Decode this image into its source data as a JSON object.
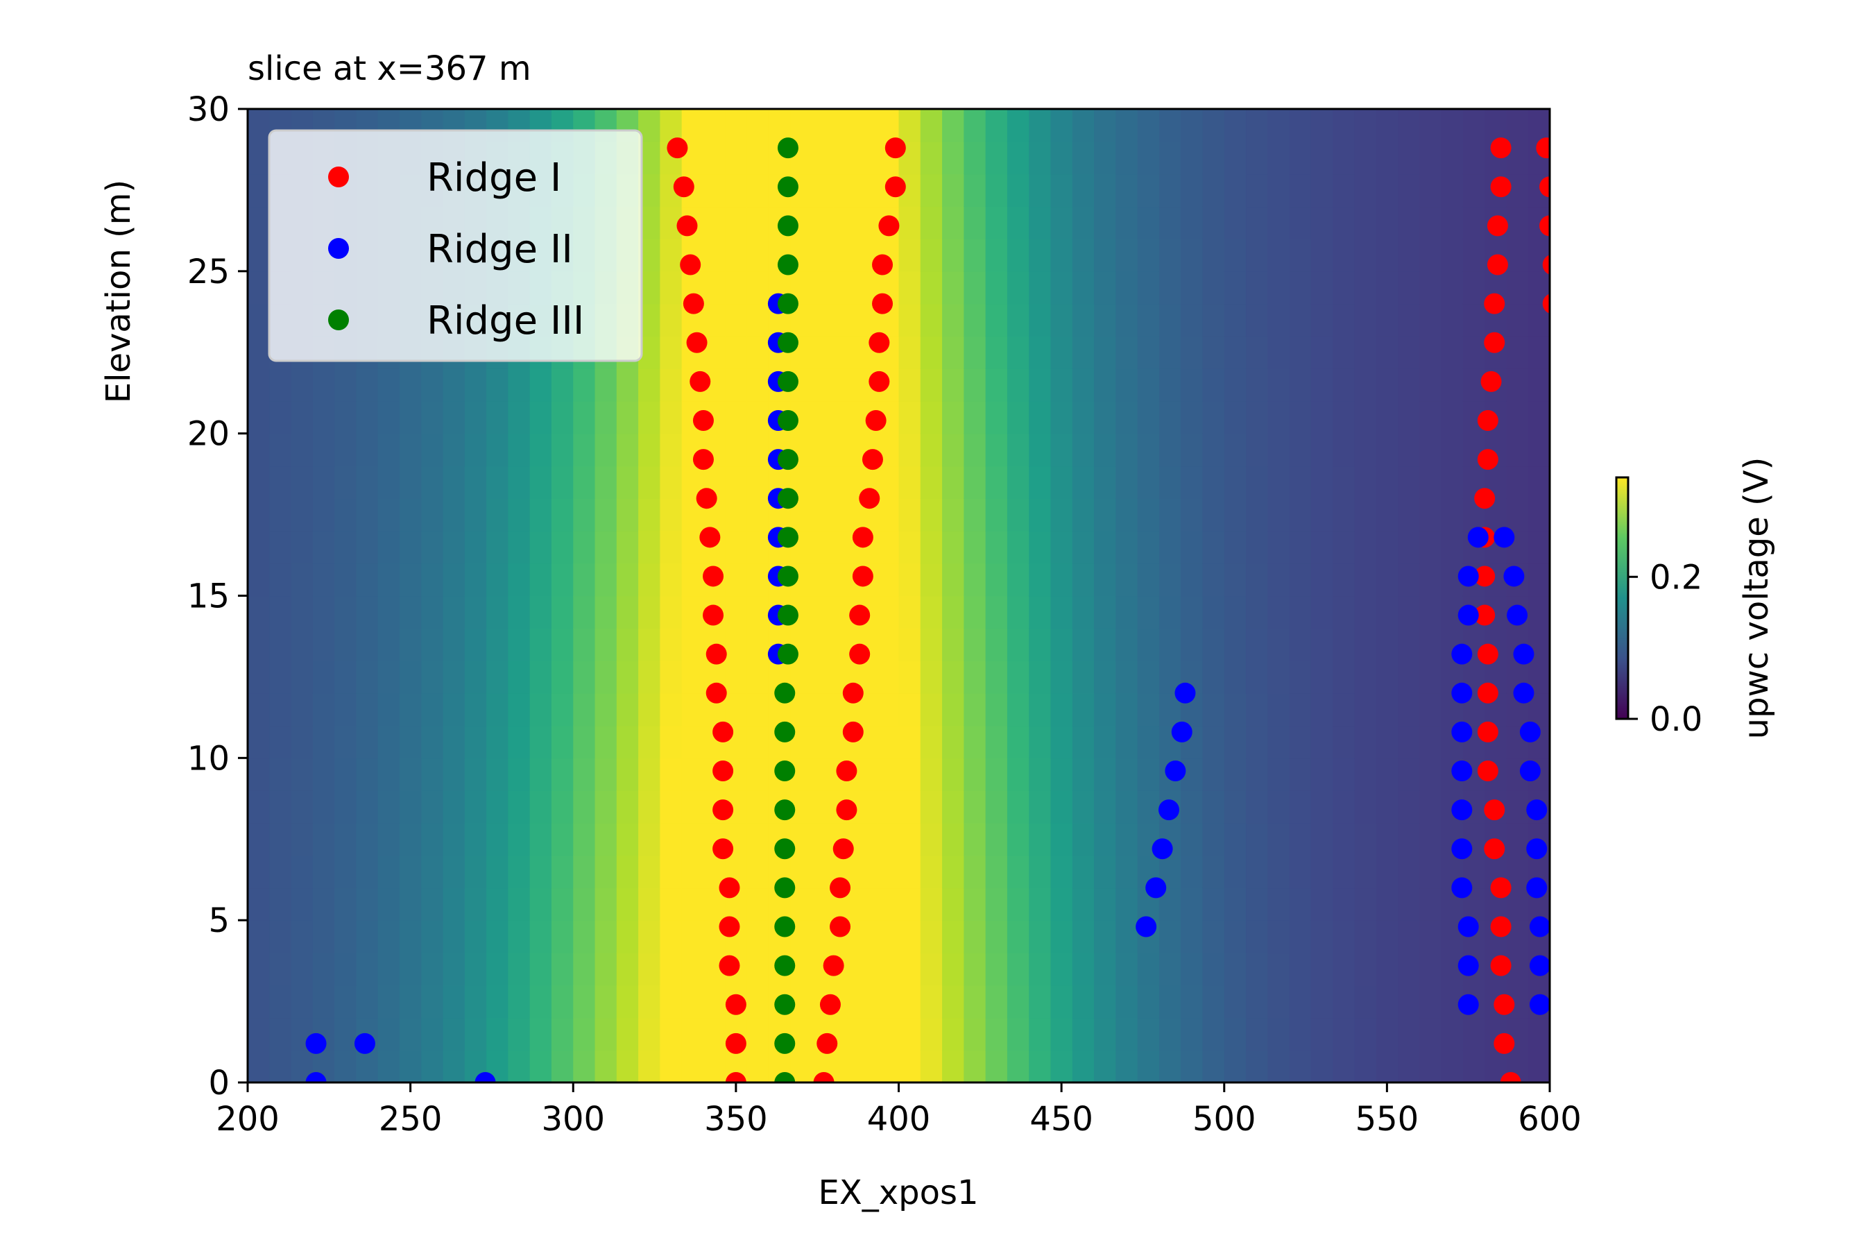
{
  "chart_data": {
    "type": "heatmap",
    "title": "slice at x=367 m",
    "xlabel": "EX_xpos1",
    "ylabel": "Elevation (m)",
    "xlim": [
      200,
      600
    ],
    "ylim": [
      0,
      30
    ],
    "x_ticks": [
      200,
      250,
      300,
      350,
      400,
      450,
      500,
      550,
      600
    ],
    "y_ticks": [
      0,
      5,
      10,
      15,
      20,
      25,
      30
    ],
    "heatmap": {
      "colormap": "viridis",
      "vmin": 0.0,
      "vmax": 0.34,
      "description_value_peak_x": 367,
      "colorbar_label": "upwc voltage (V)",
      "colorbar_ticks": [
        0.0,
        0.2
      ]
    },
    "legend": {
      "position": "top-left",
      "entries": [
        "Ridge I",
        "Ridge II",
        "Ridge III"
      ]
    },
    "series": [
      {
        "name": "Ridge I",
        "color": "#ff0000",
        "points": [
          [
            332,
            28.8
          ],
          [
            334,
            27.6
          ],
          [
            335,
            26.4
          ],
          [
            336,
            25.2
          ],
          [
            337,
            24.0
          ],
          [
            338,
            22.8
          ],
          [
            339,
            21.6
          ],
          [
            340,
            20.4
          ],
          [
            340,
            19.2
          ],
          [
            341,
            18.0
          ],
          [
            342,
            16.8
          ],
          [
            343,
            15.6
          ],
          [
            343,
            14.4
          ],
          [
            344,
            13.2
          ],
          [
            344,
            12.0
          ],
          [
            346,
            10.8
          ],
          [
            346,
            9.6
          ],
          [
            346,
            8.4
          ],
          [
            346,
            7.2
          ],
          [
            348,
            6.0
          ],
          [
            348,
            4.8
          ],
          [
            348,
            3.6
          ],
          [
            350,
            2.4
          ],
          [
            350,
            1.2
          ],
          [
            350,
            0.0
          ],
          [
            399,
            28.8
          ],
          [
            399,
            27.6
          ],
          [
            397,
            26.4
          ],
          [
            395,
            25.2
          ],
          [
            395,
            24.0
          ],
          [
            394,
            22.8
          ],
          [
            394,
            21.6
          ],
          [
            393,
            20.4
          ],
          [
            392,
            19.2
          ],
          [
            391,
            18.0
          ],
          [
            389,
            16.8
          ],
          [
            389,
            15.6
          ],
          [
            388,
            14.4
          ],
          [
            388,
            13.2
          ],
          [
            386,
            12.0
          ],
          [
            386,
            10.8
          ],
          [
            384,
            9.6
          ],
          [
            384,
            8.4
          ],
          [
            383,
            7.2
          ],
          [
            382,
            6.0
          ],
          [
            382,
            4.8
          ],
          [
            380,
            3.6
          ],
          [
            379,
            2.4
          ],
          [
            378,
            1.2
          ],
          [
            377,
            0.0
          ],
          [
            585,
            28.8
          ],
          [
            585,
            27.6
          ],
          [
            584,
            26.4
          ],
          [
            584,
            25.2
          ],
          [
            583,
            24.0
          ],
          [
            583,
            22.8
          ],
          [
            582,
            21.6
          ],
          [
            581,
            20.4
          ],
          [
            581,
            19.2
          ],
          [
            580,
            18.0
          ],
          [
            580,
            16.8
          ],
          [
            580,
            15.6
          ],
          [
            580,
            14.4
          ],
          [
            581,
            13.2
          ],
          [
            581,
            12.0
          ],
          [
            581,
            10.8
          ],
          [
            581,
            9.6
          ],
          [
            583,
            8.4
          ],
          [
            583,
            7.2
          ],
          [
            585,
            6.0
          ],
          [
            585,
            4.8
          ],
          [
            585,
            3.6
          ],
          [
            586,
            2.4
          ],
          [
            586,
            1.2
          ],
          [
            588,
            0.0
          ],
          [
            599,
            28.8
          ],
          [
            600,
            27.6
          ],
          [
            600,
            26.4
          ],
          [
            601,
            25.2
          ],
          [
            601,
            24.0
          ]
        ]
      },
      {
        "name": "Ridge II",
        "color": "#0000ff",
        "points": [
          [
            221,
            1.2
          ],
          [
            221,
            0.0
          ],
          [
            236,
            1.2
          ],
          [
            273,
            0.0
          ],
          [
            363,
            24.0
          ],
          [
            363,
            22.8
          ],
          [
            363,
            21.6
          ],
          [
            363,
            20.4
          ],
          [
            363,
            19.2
          ],
          [
            363,
            18.0
          ],
          [
            363,
            16.8
          ],
          [
            363,
            15.6
          ],
          [
            363,
            14.4
          ],
          [
            363,
            13.2
          ],
          [
            488,
            12.0
          ],
          [
            487,
            10.8
          ],
          [
            485,
            9.6
          ],
          [
            483,
            8.4
          ],
          [
            481,
            7.2
          ],
          [
            479,
            6.0
          ],
          [
            476,
            4.8
          ],
          [
            578,
            16.8
          ],
          [
            575,
            15.6
          ],
          [
            575,
            14.4
          ],
          [
            573,
            13.2
          ],
          [
            573,
            12.0
          ],
          [
            573,
            10.8
          ],
          [
            573,
            9.6
          ],
          [
            573,
            8.4
          ],
          [
            573,
            7.2
          ],
          [
            573,
            6.0
          ],
          [
            575,
            4.8
          ],
          [
            575,
            3.6
          ],
          [
            575,
            2.4
          ],
          [
            586,
            16.8
          ],
          [
            589,
            15.6
          ],
          [
            590,
            14.4
          ],
          [
            592,
            13.2
          ],
          [
            592,
            12.0
          ],
          [
            594,
            10.8
          ],
          [
            594,
            9.6
          ],
          [
            596,
            8.4
          ],
          [
            596,
            7.2
          ],
          [
            596,
            6.0
          ],
          [
            597,
            4.8
          ],
          [
            597,
            3.6
          ],
          [
            597,
            2.4
          ]
        ]
      },
      {
        "name": "Ridge III",
        "color": "#008000",
        "points": [
          [
            366,
            28.8
          ],
          [
            366,
            27.6
          ],
          [
            366,
            26.4
          ],
          [
            366,
            25.2
          ],
          [
            366,
            24.0
          ],
          [
            366,
            22.8
          ],
          [
            366,
            21.6
          ],
          [
            366,
            20.4
          ],
          [
            366,
            19.2
          ],
          [
            366,
            18.0
          ],
          [
            366,
            16.8
          ],
          [
            366,
            15.6
          ],
          [
            366,
            14.4
          ],
          [
            366,
            13.2
          ],
          [
            365,
            12.0
          ],
          [
            365,
            10.8
          ],
          [
            365,
            9.6
          ],
          [
            365,
            8.4
          ],
          [
            365,
            7.2
          ],
          [
            365,
            6.0
          ],
          [
            365,
            4.8
          ],
          [
            365,
            3.6
          ],
          [
            365,
            2.4
          ],
          [
            365,
            1.2
          ],
          [
            365,
            0.0
          ]
        ]
      }
    ]
  }
}
